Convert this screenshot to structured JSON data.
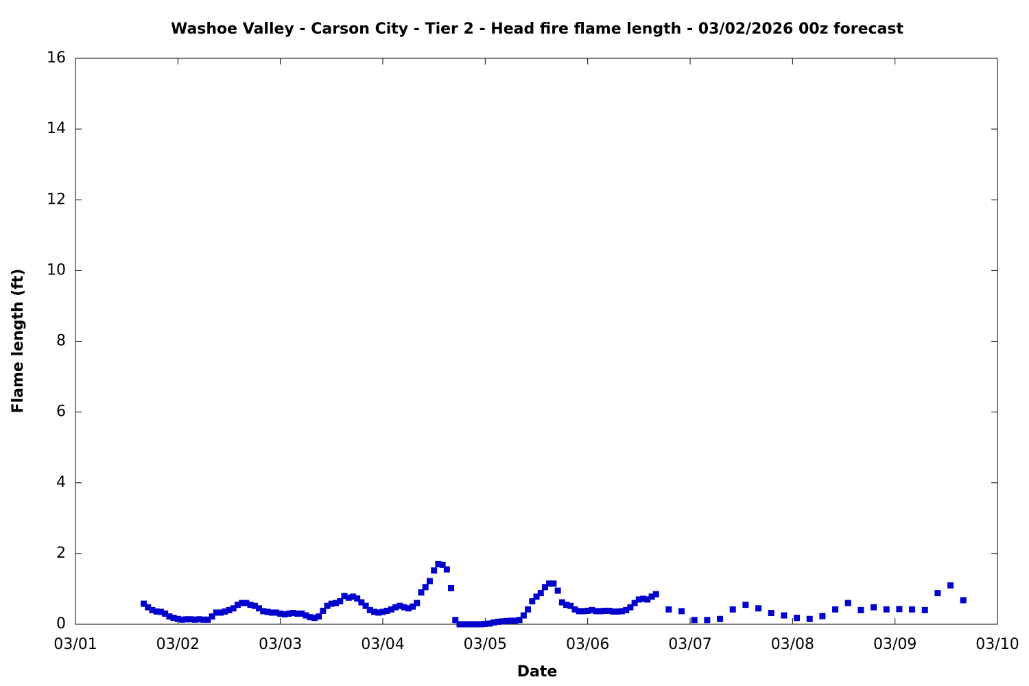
{
  "chart_data": {
    "type": "scatter",
    "title": "Washoe Valley - Carson City - Tier 2 - Head fire flame length - 03/02/2026 00z forecast",
    "xlabel": "Date",
    "ylabel": "Flame length (ft)",
    "xlim": [
      0,
      216
    ],
    "xticks": [
      {
        "value": 0,
        "label": "03/01"
      },
      {
        "value": 24,
        "label": "03/02"
      },
      {
        "value": 48,
        "label": "03/03"
      },
      {
        "value": 72,
        "label": "03/04"
      },
      {
        "value": 96,
        "label": "03/05"
      },
      {
        "value": 120,
        "label": "03/06"
      },
      {
        "value": 144,
        "label": "03/07"
      },
      {
        "value": 168,
        "label": "03/08"
      },
      {
        "value": 192,
        "label": "03/09"
      },
      {
        "value": 216,
        "label": "03/10"
      }
    ],
    "ylim": [
      0,
      16
    ],
    "yticks": [
      0,
      2,
      4,
      6,
      8,
      10,
      12,
      14,
      16
    ],
    "series": [
      {
        "color": "#0000cc",
        "x": [
          16,
          17,
          18,
          19,
          20,
          21,
          22,
          23,
          24,
          25,
          26,
          27,
          28,
          29,
          30,
          31,
          32,
          33,
          34,
          35,
          36,
          37,
          38,
          39,
          40,
          41,
          42,
          43,
          44,
          45,
          46,
          47,
          48,
          49,
          50,
          51,
          52,
          53,
          54,
          55,
          56,
          57,
          58,
          59,
          60,
          61,
          62,
          63,
          64,
          65,
          66,
          67,
          68,
          69,
          70,
          71,
          72,
          73,
          74,
          75,
          76,
          77,
          78,
          79,
          80,
          81,
          82,
          83,
          84,
          85,
          86,
          87,
          88,
          89,
          90,
          91,
          92,
          93,
          94,
          95,
          96,
          97,
          98,
          99,
          100,
          101,
          102,
          103,
          104,
          105,
          106,
          107,
          108,
          109,
          110,
          111,
          112,
          113,
          114,
          115,
          116,
          117,
          118,
          119,
          120,
          121,
          122,
          123,
          124,
          125,
          126,
          127,
          128,
          129,
          130,
          131,
          132,
          133,
          134,
          135,
          136,
          139,
          142,
          145,
          148,
          151,
          154,
          157,
          160,
          163,
          166,
          169,
          172,
          175,
          178,
          181,
          184,
          187,
          190,
          193,
          196,
          199,
          202,
          205,
          208
        ],
        "values": [
          0.58,
          0.48,
          0.4,
          0.36,
          0.35,
          0.3,
          0.22,
          0.18,
          0.15,
          0.13,
          0.14,
          0.14,
          0.13,
          0.14,
          0.13,
          0.13,
          0.22,
          0.33,
          0.33,
          0.36,
          0.4,
          0.45,
          0.55,
          0.6,
          0.6,
          0.55,
          0.52,
          0.45,
          0.37,
          0.35,
          0.33,
          0.33,
          0.3,
          0.28,
          0.3,
          0.32,
          0.3,
          0.3,
          0.25,
          0.2,
          0.18,
          0.22,
          0.38,
          0.52,
          0.58,
          0.6,
          0.65,
          0.8,
          0.75,
          0.78,
          0.73,
          0.62,
          0.52,
          0.4,
          0.35,
          0.33,
          0.35,
          0.38,
          0.42,
          0.48,
          0.52,
          0.48,
          0.45,
          0.5,
          0.6,
          0.9,
          1.05,
          1.22,
          1.52,
          1.7,
          1.68,
          1.55,
          1.02,
          0.12,
          0.0,
          0.0,
          0.0,
          0.0,
          0.0,
          0.0,
          0.01,
          0.02,
          0.05,
          0.07,
          0.08,
          0.09,
          0.1,
          0.1,
          0.12,
          0.25,
          0.42,
          0.65,
          0.78,
          0.88,
          1.05,
          1.15,
          1.15,
          0.95,
          0.62,
          0.55,
          0.52,
          0.42,
          0.37,
          0.37,
          0.38,
          0.4,
          0.37,
          0.37,
          0.38,
          0.38,
          0.36,
          0.36,
          0.37,
          0.4,
          0.48,
          0.6,
          0.7,
          0.72,
          0.7,
          0.78,
          0.85,
          0.42,
          0.37,
          0.12,
          0.12,
          0.15,
          0.42,
          0.55,
          0.45,
          0.32,
          0.25,
          0.18,
          0.15,
          0.23,
          0.42,
          0.6,
          0.4,
          0.48,
          0.42,
          0.43,
          0.42,
          0.4,
          0.88,
          1.1,
          0.68
        ]
      }
    ]
  }
}
